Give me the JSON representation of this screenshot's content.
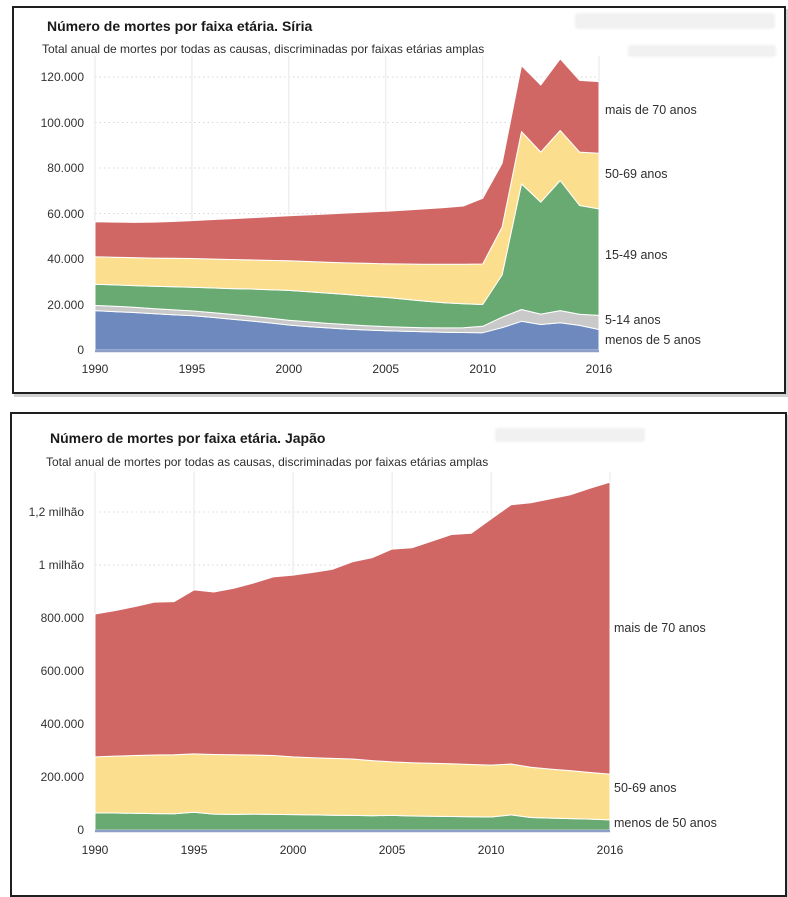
{
  "accent_colors": {
    "area_stroke": "#ffffff",
    "grid_horizontal": "#d8d8d8",
    "grid_vertical": "#e7e7e7",
    "axis_baseline": "#8d9fc7",
    "frame_border": "#1f1f1f"
  },
  "chart_data": [
    {
      "type": "area",
      "stacked": true,
      "title": "Número de mortes por faixa etária. Síria",
      "subtitle": "Total anual de mortes por todas as causas, discriminadas por faixas etárias amplas",
      "xlabel": "",
      "ylabel": "",
      "x": [
        1990,
        1991,
        1992,
        1993,
        1994,
        1995,
        1996,
        1997,
        1998,
        1999,
        2000,
        2001,
        2002,
        2003,
        2004,
        2005,
        2006,
        2007,
        2008,
        2009,
        2010,
        2011,
        2012,
        2013,
        2014,
        2015,
        2016
      ],
      "x_ticks": [
        {
          "value": 1990,
          "label": "1990"
        },
        {
          "value": 1995,
          "label": "1995"
        },
        {
          "value": 2000,
          "label": "2000"
        },
        {
          "value": 2005,
          "label": "2005"
        },
        {
          "value": 2010,
          "label": "2010"
        },
        {
          "value": 2016,
          "label": "2016"
        }
      ],
      "y_ticks": [
        {
          "value": 0,
          "label": "0"
        },
        {
          "value": 20000,
          "label": "20.000"
        },
        {
          "value": 40000,
          "label": "40.000"
        },
        {
          "value": 60000,
          "label": "60.000"
        },
        {
          "value": 80000,
          "label": "80.000"
        },
        {
          "value": 100000,
          "label": "100.000"
        },
        {
          "value": 120000,
          "label": "120.000"
        }
      ],
      "ylim": [
        0,
        130000
      ],
      "grid": true,
      "legend_position": "right-inline-labels",
      "series": [
        {
          "name": "menos de 5 anos",
          "color": "#6e89bd",
          "values": [
            17300,
            16900,
            16500,
            16000,
            15500,
            15100,
            14400,
            13600,
            12800,
            11900,
            11000,
            10300,
            9700,
            9200,
            8800,
            8500,
            8200,
            8000,
            7800,
            7700,
            7600,
            9800,
            12600,
            11200,
            12000,
            10800,
            9000
          ]
        },
        {
          "name": "5-14 anos",
          "color": "#c9c9c9",
          "values": [
            2300,
            2300,
            2300,
            2200,
            2200,
            2100,
            2100,
            2100,
            2100,
            2100,
            2100,
            2100,
            2000,
            2000,
            1900,
            1800,
            1800,
            1800,
            1900,
            2100,
            2800,
            4600,
            5200,
            4600,
            5300,
            4900,
            6200
          ]
        },
        {
          "name": "15-49 anos",
          "color": "#68aa71",
          "values": [
            9300,
            9400,
            9500,
            9800,
            10100,
            10400,
            10800,
            11300,
            11900,
            12500,
            13100,
            13200,
            13300,
            13200,
            13000,
            12800,
            12300,
            11700,
            11100,
            10500,
            9600,
            18600,
            55200,
            49200,
            57200,
            47800,
            46800
          ]
        },
        {
          "name": "50-69 anos",
          "color": "#fcdf8e",
          "values": [
            12100,
            12200,
            12300,
            12400,
            12500,
            12600,
            12700,
            12800,
            12800,
            12900,
            13000,
            13300,
            13600,
            13900,
            14400,
            14800,
            15500,
            16200,
            16900,
            17400,
            17800,
            21000,
            23000,
            22000,
            22000,
            23500,
            24500
          ]
        },
        {
          "name": "mais de 70 anos",
          "color": "#d06764",
          "values": [
            15400,
            15400,
            15500,
            15800,
            16200,
            16700,
            17300,
            17900,
            18500,
            19200,
            19800,
            20500,
            21200,
            21900,
            22500,
            23100,
            23700,
            24300,
            24900,
            25600,
            28900,
            28000,
            29000,
            29500,
            31500,
            31500,
            31500
          ]
        }
      ]
    },
    {
      "type": "area",
      "stacked": true,
      "title": "Número de mortes por faixa etária. Japão",
      "subtitle": "Total anual de mortes por todas as causas, discriminadas por faixas etárias amplas",
      "xlabel": "",
      "ylabel": "",
      "x": [
        1990,
        1991,
        1992,
        1993,
        1994,
        1995,
        1996,
        1997,
        1998,
        1999,
        2000,
        2001,
        2002,
        2003,
        2004,
        2005,
        2006,
        2007,
        2008,
        2009,
        2010,
        2011,
        2012,
        2013,
        2014,
        2015,
        2016
      ],
      "x_ticks": [
        {
          "value": 1990,
          "label": "1990"
        },
        {
          "value": 1995,
          "label": "1995"
        },
        {
          "value": 2000,
          "label": "2000"
        },
        {
          "value": 2005,
          "label": "2005"
        },
        {
          "value": 2010,
          "label": "2010"
        },
        {
          "value": 2016,
          "label": "2016"
        }
      ],
      "y_ticks": [
        {
          "value": 0,
          "label": "0"
        },
        {
          "value": 200000,
          "label": "200.000"
        },
        {
          "value": 400000,
          "label": "400.000"
        },
        {
          "value": 600000,
          "label": "600.000"
        },
        {
          "value": 800000,
          "label": "800.000"
        },
        {
          "value": 1000000,
          "label": "1 milhão"
        },
        {
          "value": 1200000,
          "label": "1,2 milhão"
        }
      ],
      "ylim": [
        0,
        1350000
      ],
      "grid": true,
      "legend_position": "right-inline-labels",
      "series": [
        {
          "name": "menos de 50 anos",
          "color": "#68aa71",
          "values": [
            64000,
            64000,
            63000,
            62000,
            61000,
            67000,
            60000,
            59000,
            60000,
            59000,
            58000,
            57000,
            56000,
            55000,
            54000,
            55000,
            53000,
            52000,
            51000,
            50000,
            49000,
            57000,
            47000,
            45000,
            43000,
            41000,
            38000
          ]
        },
        {
          "name": "50-69 anos",
          "color": "#fcdf8e",
          "values": [
            212000,
            215000,
            218000,
            221000,
            223000,
            220000,
            225000,
            225000,
            223000,
            222000,
            218000,
            216000,
            214000,
            213000,
            208000,
            202000,
            201000,
            200000,
            199000,
            197000,
            196000,
            192000,
            190000,
            185000,
            181000,
            176000,
            173000
          ]
        },
        {
          "name": "mais de 70 anos",
          "color": "#d06764",
          "values": [
            539000,
            549000,
            562000,
            577000,
            578000,
            619000,
            613000,
            628000,
            649000,
            674000,
            686000,
            699000,
            714000,
            744000,
            766000,
            803000,
            811000,
            838000,
            865000,
            873000,
            929000,
            978000,
            998000,
            1020000,
            1041000,
            1073000,
            1102000
          ]
        }
      ]
    }
  ]
}
